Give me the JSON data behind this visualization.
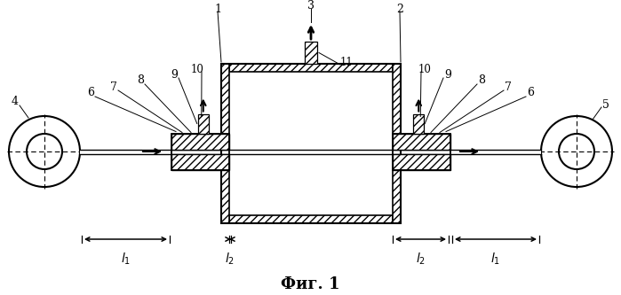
{
  "bg_color": "#ffffff",
  "line_color": "#000000",
  "fig_width": 6.99,
  "fig_height": 3.33,
  "dpi": 100,
  "title": "Фиг. 1",
  "title_fontsize": 13
}
